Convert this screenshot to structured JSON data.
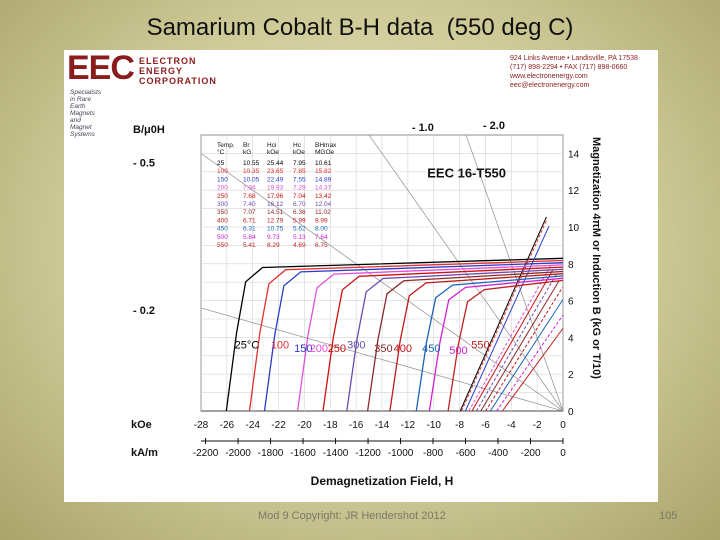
{
  "slide": {
    "title": "Samarium Cobalt B-H data  (550 deg C)",
    "footer": "Mod 9 Copyright: JR Hendershot 2012",
    "page_number": "105"
  },
  "logo": {
    "letters": "EEC",
    "lines": [
      "ELECTRON",
      "ENERGY",
      "CORPORATION"
    ],
    "tagline": "Specialists in Rare Earth Magnets and Magnet Systems"
  },
  "contact": [
    "924 Links Avenue • Landisville, PA 17538",
    "(717) 898-2294 • FAX (717) 898-0660",
    "www.electronenergy.com",
    "eec@electronenergy.com"
  ],
  "colors": {
    "25": "#000000",
    "100": "#e03030",
    "150": "#2a3cc8",
    "200": "#e050d8",
    "250": "#d01010",
    "300": "#6a4ab0",
    "350": "#8a2a2a",
    "400": "#c01818",
    "450": "#1a64b8",
    "500": "#d020d0",
    "550": "#c02020"
  },
  "chart_data": {
    "type": "line",
    "title": "EEC 16-T550",
    "y_label_left": "B/μ0H",
    "y_label_right": "Magnetization 4πM or Induction B (kG or T/10)",
    "xlabel": "Demagnetization Field, H",
    "x_unit_koe": "kOe",
    "x_unit_kam": "kA/m",
    "x_ticks_koe": [
      -28,
      -26,
      -24,
      -22,
      -20,
      -18,
      -16,
      -14,
      -12,
      -10,
      -8,
      -6,
      -4,
      -2,
      0
    ],
    "x_ticks_kam": [
      -2200,
      -2000,
      -1800,
      -1600,
      -1400,
      -1200,
      -1000,
      -800,
      -600,
      -400,
      -200,
      0
    ],
    "y_ticks_right": [
      0,
      2,
      4,
      6,
      8,
      10,
      12,
      14
    ],
    "xlim": [
      -28,
      0
    ],
    "ylim": [
      0,
      15
    ],
    "load_lines": [
      {
        "label": "- 0.5",
        "slope": -0.5
      },
      {
        "label": "- 0.2",
        "slope": -0.2
      },
      {
        "label": "- 1.0",
        "slope": -1.0
      },
      {
        "label": "- 2.0",
        "slope": -2.0
      }
    ],
    "series": [
      {
        "name": "25°C",
        "temp": "25",
        "br": 10.55,
        "hci": 25.44,
        "hc": 7.95
      },
      {
        "name": "100",
        "temp": "100",
        "br": 10.35,
        "hci": 23.65,
        "hc": 7.85
      },
      {
        "name": "150",
        "temp": "150",
        "br": 10.05,
        "hci": 22.49,
        "hc": 7.55
      },
      {
        "name": "200",
        "temp": "200",
        "br": 7.94,
        "hci": 19.93,
        "hc": 7.29
      },
      {
        "name": "250",
        "temp": "250",
        "br": 7.68,
        "hci": 17.96,
        "hc": 7.04
      },
      {
        "name": "300",
        "temp": "300",
        "br": 7.4,
        "hci": 16.12,
        "hc": 6.7
      },
      {
        "name": "350",
        "temp": "350",
        "br": 7.07,
        "hci": 14.51,
        "hc": 6.36
      },
      {
        "name": "400",
        "temp": "400",
        "br": 6.71,
        "hci": 12.79,
        "hc": 5.99
      },
      {
        "name": "450",
        "temp": "450",
        "br": 6.31,
        "hci": 10.75,
        "hc": 5.62
      },
      {
        "name": "500",
        "temp": "500",
        "br": 5.84,
        "hci": 9.73,
        "hc": 5.13
      },
      {
        "name": "550",
        "temp": "550",
        "br": 5.41,
        "hci": 8.29,
        "hc": 4.69
      }
    ],
    "table": {
      "headers": [
        "Temp. °C",
        "Br kG",
        "Hci kOe",
        "Hc kOe",
        "BHmax MGOe"
      ],
      "rows": [
        [
          "25",
          "10.55",
          "25.44",
          "7.95",
          "10.61"
        ],
        [
          "100",
          "10.35",
          "23.65",
          "7.85",
          "15.82"
        ],
        [
          "150",
          "10.05",
          "22.49",
          "7.55",
          "14.89"
        ],
        [
          "200",
          "7.94",
          "19.93",
          "7.29",
          "14.37"
        ],
        [
          "250",
          "7.68",
          "17.96",
          "7.04",
          "13.42"
        ],
        [
          "300",
          "7.40",
          "16.12",
          "6.70",
          "12.04"
        ],
        [
          "350",
          "7.07",
          "14.51",
          "6.36",
          "11.02"
        ],
        [
          "400",
          "6.71",
          "12.79",
          "5.99",
          "9.99"
        ],
        [
          "450",
          "6.31",
          "10.75",
          "5.62",
          "8.00"
        ],
        [
          "500",
          "5.84",
          "9.73",
          "5.13",
          "7.64"
        ],
        [
          "550",
          "5.41",
          "8.29",
          "4.69",
          "6.75"
        ]
      ]
    }
  }
}
